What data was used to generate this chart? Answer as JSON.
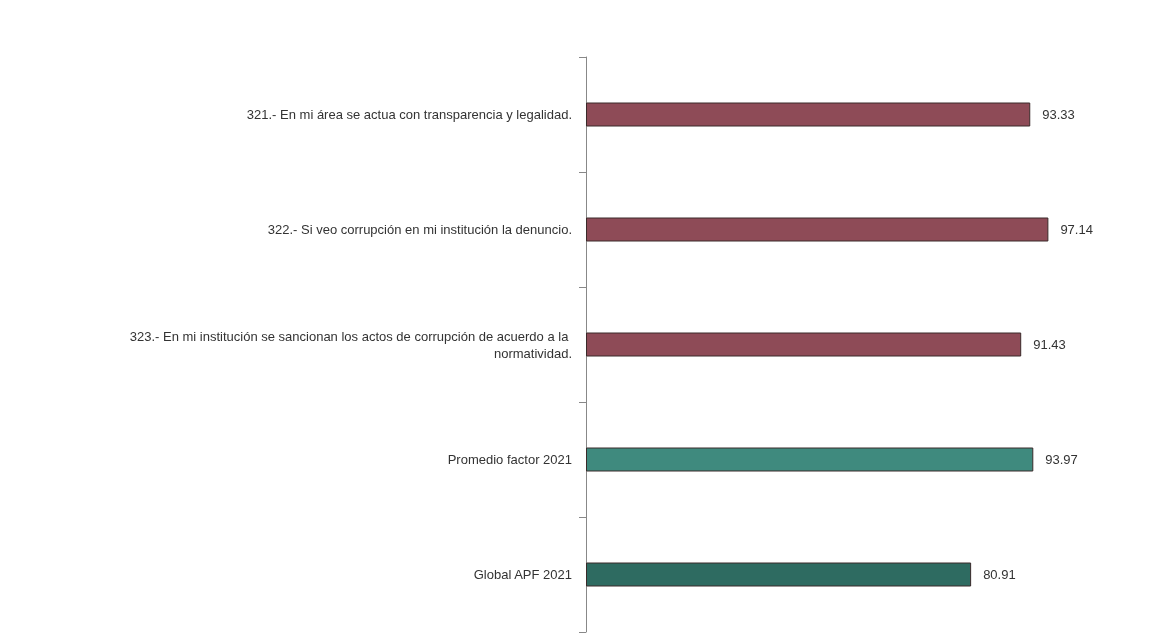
{
  "chart_data": {
    "type": "bar",
    "orientation": "horizontal",
    "categories": [
      "321.- En mi área se actua con transparencia y legalidad.",
      "322.- Si veo corrupción en mi institución la denuncio.",
      "323.- En mi institución se sancionan los actos de corrupción de acuerdo a la normatividad.",
      "Promedio factor 2021",
      "Global APF 2021"
    ],
    "values": [
      93.33,
      97.14,
      91.43,
      93.97,
      80.91
    ],
    "colors": [
      "#8e4b57",
      "#8e4b57",
      "#8e4b57",
      "#3f8a7e",
      "#2e6b61"
    ],
    "data_labels": true
  }
}
